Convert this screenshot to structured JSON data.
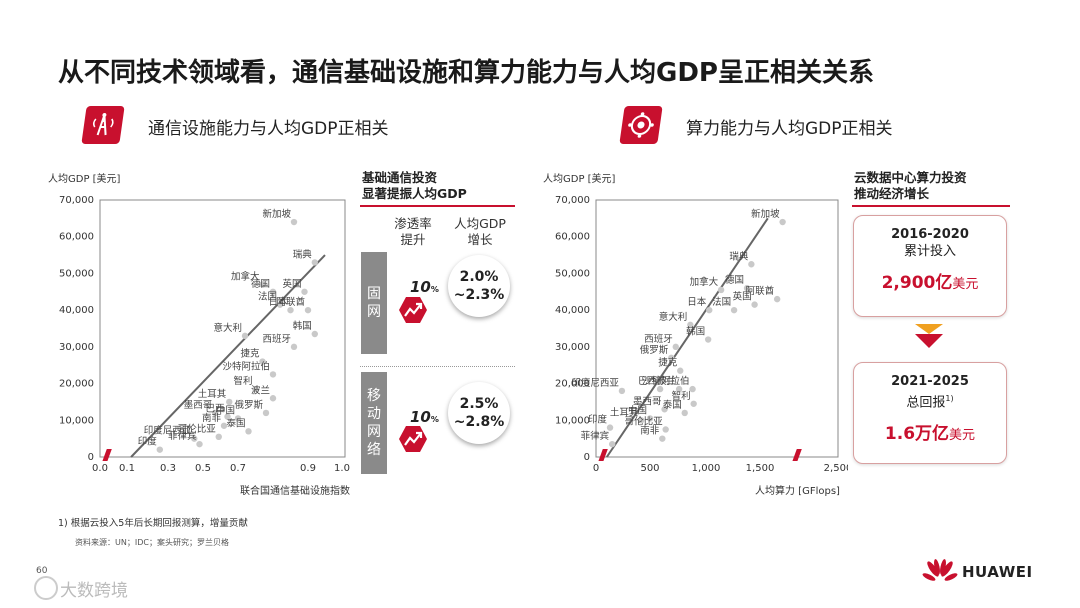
{
  "title": "从不同技术领域看，通信基础设施和算力能力与人均GDP呈正相关关系",
  "left_section": {
    "title": "通信设施能力与人均GDP正相关",
    "icon": "telecom-tower-icon"
  },
  "right_section": {
    "title": "算力能力与人均GDP正相关",
    "icon": "compute-chip-icon"
  },
  "left_panel": {
    "heading_lines": [
      "基础通信投资",
      "显著提振人均GDP"
    ],
    "col1": [
      "渗透率",
      "提升"
    ],
    "col2": [
      "人均GDP",
      "增长"
    ],
    "rows": [
      {
        "band": [
          "固",
          "网"
        ],
        "pct": "10",
        "pct_unit": "%",
        "growth": [
          "2.0%",
          "~2.3%"
        ]
      },
      {
        "band": [
          "移",
          "动",
          "网",
          "络"
        ],
        "pct": "10",
        "pct_unit": "%",
        "growth": [
          "2.5%",
          "~2.8%"
        ]
      }
    ]
  },
  "right_panel": {
    "heading_lines": [
      "云数据中心算力投资",
      "推动经济增长"
    ],
    "card1": {
      "period": "2016-2020",
      "label": "累计投入",
      "value": "2,900亿",
      "unit": "美元"
    },
    "card2": {
      "period": "2021-2025",
      "label": "总回报",
      "sup": "1)",
      "value": "1.6万亿",
      "unit": "美元"
    }
  },
  "chart_data": [
    {
      "type": "scatter",
      "ylabel": "人均GDP [美元]",
      "xlabel": "联合国通信基础设施指数",
      "x_ticks": [
        "0.0",
        "0.1",
        "0.3",
        "0.5",
        "0.7",
        "0.9",
        "1.0"
      ],
      "x_tick_values": [
        0.0,
        0.1,
        0.3,
        0.5,
        0.7,
        0.9,
        1.0
      ],
      "y_ticks": [
        "0",
        "10,000",
        "20,000",
        "30,000",
        "40,000",
        "50,000",
        "60,000",
        "70,000"
      ],
      "y_tick_values": [
        0,
        10000,
        20000,
        30000,
        40000,
        50000,
        60000,
        70000
      ],
      "xlim": [
        0,
        1.0
      ],
      "ylim": [
        0,
        70000
      ],
      "trendline": [
        [
          0.12,
          0
        ],
        [
          0.95,
          55000
        ]
      ],
      "points": [
        {
          "label": "新加坡",
          "x": 0.86,
          "y": 64000
        },
        {
          "label": "瑞典",
          "x": 0.92,
          "y": 53000
        },
        {
          "label": "加拿大",
          "x": 0.77,
          "y": 47000
        },
        {
          "label": "德国",
          "x": 0.8,
          "y": 45000
        },
        {
          "label": "英国",
          "x": 0.89,
          "y": 45000
        },
        {
          "label": "法国",
          "x": 0.82,
          "y": 41500
        },
        {
          "label": "日本",
          "x": 0.85,
          "y": 40000
        },
        {
          "label": "阿联酋",
          "x": 0.9,
          "y": 40000
        },
        {
          "label": "韩国",
          "x": 0.92,
          "y": 33500
        },
        {
          "label": "意大利",
          "x": 0.72,
          "y": 33000
        },
        {
          "label": "西班牙",
          "x": 0.86,
          "y": 30000
        },
        {
          "label": "捷克",
          "x": 0.77,
          "y": 26000
        },
        {
          "label": "沙特阿拉伯",
          "x": 0.8,
          "y": 22500
        },
        {
          "label": "智利",
          "x": 0.75,
          "y": 18500
        },
        {
          "label": "波兰",
          "x": 0.8,
          "y": 16000
        },
        {
          "label": "土耳其",
          "x": 0.65,
          "y": 15000
        },
        {
          "label": "墨西哥",
          "x": 0.57,
          "y": 12000
        },
        {
          "label": "巴西",
          "x": 0.64,
          "y": 11000
        },
        {
          "label": "俄罗斯",
          "x": 0.78,
          "y": 12000
        },
        {
          "label": "中国",
          "x": 0.7,
          "y": 10500
        },
        {
          "label": "南非",
          "x": 0.62,
          "y": 8500
        },
        {
          "label": "泰国",
          "x": 0.73,
          "y": 7000
        },
        {
          "label": "印度尼西亚",
          "x": 0.45,
          "y": 5000
        },
        {
          "label": "哥伦比亚",
          "x": 0.59,
          "y": 5500
        },
        {
          "label": "菲律宾",
          "x": 0.48,
          "y": 3500
        },
        {
          "label": "印度",
          "x": 0.26,
          "y": 2000
        }
      ]
    },
    {
      "type": "scatter",
      "ylabel": "人均GDP [美元]",
      "xlabel": "人均算力 [GFlops]",
      "x_ticks": [
        "0",
        "500",
        "1,000",
        "1,500",
        "2,500"
      ],
      "x_tick_values": [
        0,
        500,
        1000,
        1500,
        2500
      ],
      "y_ticks": [
        "0",
        "10,000",
        "20,000",
        "30,000",
        "40,000",
        "50,000",
        "60,000",
        "70,000"
      ],
      "y_tick_values": [
        0,
        10000,
        20000,
        30000,
        40000,
        50000,
        60000,
        70000
      ],
      "xlim": [
        0,
        2500
      ],
      "ylim": [
        0,
        70000
      ],
      "trendline": [
        [
          100,
          0
        ],
        [
          1600,
          65000
        ]
      ],
      "points": [
        {
          "label": "新加坡",
          "x": 1790,
          "y": 64000
        },
        {
          "label": "瑞典",
          "x": 1420,
          "y": 52500
        },
        {
          "label": "德国",
          "x": 1380,
          "y": 46000
        },
        {
          "label": "加拿大",
          "x": 1140,
          "y": 45500
        },
        {
          "label": "阿联酋",
          "x": 1720,
          "y": 43000
        },
        {
          "label": "日本",
          "x": 1030,
          "y": 40000
        },
        {
          "label": "法国",
          "x": 1260,
          "y": 40000
        },
        {
          "label": "英国",
          "x": 1450,
          "y": 41500
        },
        {
          "label": "意大利",
          "x": 860,
          "y": 36000
        },
        {
          "label": "韩国",
          "x": 1020,
          "y": 32000
        },
        {
          "label": "西班牙",
          "x": 730,
          "y": 30000
        },
        {
          "label": "俄罗斯",
          "x": 690,
          "y": 27000
        },
        {
          "label": "捷克",
          "x": 770,
          "y": 23500
        },
        {
          "label": "印度尼西亚",
          "x": 240,
          "y": 18000
        },
        {
          "label": "巴西",
          "x": 590,
          "y": 18500
        },
        {
          "label": "波兰",
          "x": 760,
          "y": 18500
        },
        {
          "label": "沙特阿拉伯",
          "x": 880,
          "y": 18500
        },
        {
          "label": "土耳其",
          "x": 420,
          "y": 10000
        },
        {
          "label": "墨西哥",
          "x": 630,
          "y": 13000
        },
        {
          "label": "智利",
          "x": 890,
          "y": 14500
        },
        {
          "label": "中国",
          "x": 500,
          "y": 10500
        },
        {
          "label": "泰国",
          "x": 810,
          "y": 12000
        },
        {
          "label": "印度",
          "x": 130,
          "y": 8000
        },
        {
          "label": "哥伦比亚",
          "x": 640,
          "y": 7500
        },
        {
          "label": "南非",
          "x": 610,
          "y": 5000
        },
        {
          "label": "菲律宾",
          "x": 150,
          "y": 3500
        }
      ]
    }
  ],
  "footnote": "1) 根据云投入5年后长期回报测算，增量贡献",
  "source": "资料来源：UN；IDC；案头研究；罗兰贝格",
  "page_number": "60",
  "watermark": "大数跨境",
  "brand": {
    "name": "HUAWEI",
    "icon": "huawei-logo-icon",
    "color": "#c8102e"
  },
  "colors": {
    "accent": "#c8102e",
    "band": "#8a8a8a",
    "point": "#c9c9c9",
    "trend": "#666666"
  }
}
